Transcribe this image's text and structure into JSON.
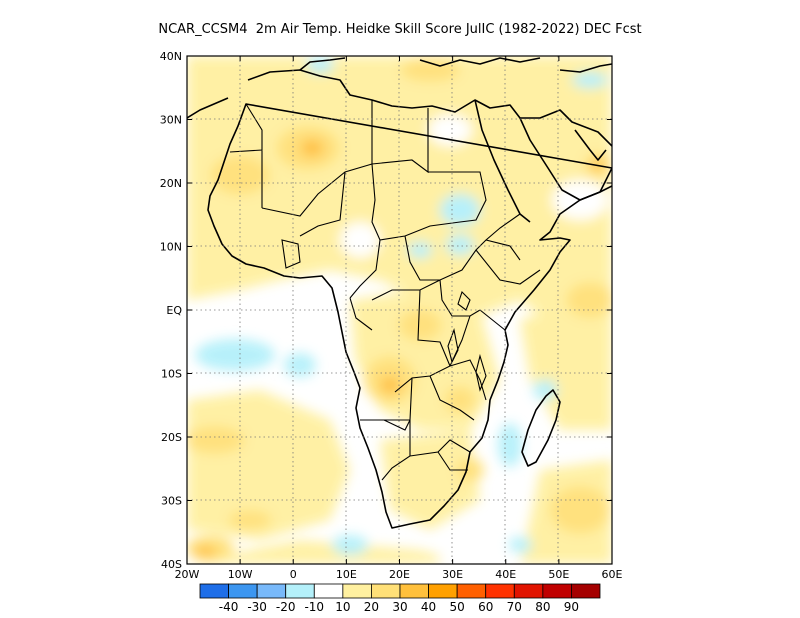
{
  "title": "NCAR_CCSM4  2m Air Temp. Heidke Skill Score JulIC (1982-2022) DEC Fcst",
  "map": {
    "lon_range": [
      -20,
      60
    ],
    "lat_range": [
      -40,
      40
    ],
    "x_ticks": [
      "20W",
      "10W",
      "0",
      "10E",
      "20E",
      "30E",
      "40E",
      "50E",
      "60E"
    ],
    "y_ticks": [
      "40N",
      "30N",
      "20N",
      "10N",
      "EQ",
      "10S",
      "20S",
      "30S",
      "40S"
    ],
    "grid": "dotted"
  },
  "colorbar": {
    "colors": [
      "#1e6ee8",
      "#3c96f0",
      "#78b9fa",
      "#b4f0fa",
      "#ffffff",
      "#fff0a0",
      "#ffe078",
      "#ffc03c",
      "#ffa000",
      "#ff6000",
      "#ff3200",
      "#e11400",
      "#c00000",
      "#a50000"
    ],
    "labels": [
      "-40",
      "-30",
      "-20",
      "-10",
      "10",
      "20",
      "30",
      "40",
      "50",
      "60",
      "70",
      "80",
      "90"
    ]
  }
}
